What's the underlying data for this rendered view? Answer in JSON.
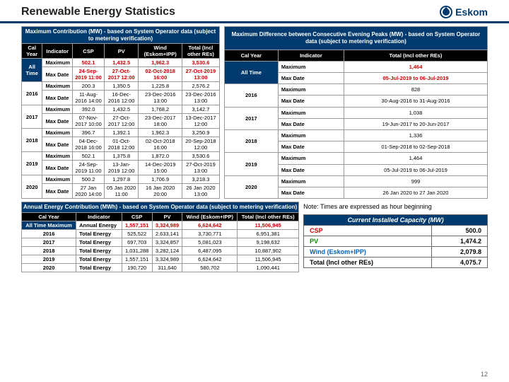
{
  "page": {
    "title": "Renewable Energy Statistics",
    "logo": "Eskom",
    "pagenum": "12",
    "note": "Note: Times are expressed as hour beginning"
  },
  "table1": {
    "banner": "Maximum Contribution (MW) - based on System Operator data (subject to metering verification)",
    "cols": [
      "Cal Year",
      "Indicator",
      "CSP",
      "PV",
      "Wind (Eskom+IPP)",
      "Total (Incl other REs)"
    ],
    "rows": [
      {
        "year": "All Time",
        "cls": "alltime",
        "ind": "Maximum",
        "vals": [
          "502.1",
          "1,432.5",
          "1,962.3",
          "3,530.6"
        ],
        "red": true
      },
      {
        "year": "",
        "cls": "alltime",
        "ind": "Max Date",
        "vals": [
          "24-Sep-2019 11:00",
          "27-Oct-2017 12:00",
          "02-Oct-2018 16:00",
          "27-Oct-2019 13:00"
        ],
        "red": true
      },
      {
        "year": "2016",
        "ind": "Maximum",
        "vals": [
          "200.3",
          "1,350.5",
          "1,225.8",
          "2,576.2"
        ]
      },
      {
        "year": "",
        "ind": "Max Date",
        "vals": [
          "11-Aug-2016 14:00",
          "16-Dec-2016 12:00",
          "23-Dec-2016 13:00",
          "23-Dec-2016 13:00"
        ]
      },
      {
        "year": "2017",
        "ind": "Maximum",
        "vals": [
          "392.0",
          "1,432.5",
          "1,768.2",
          "3,142.7"
        ]
      },
      {
        "year": "",
        "ind": "Max Date",
        "vals": [
          "07-Nov-2017 10:00",
          "27-Oct-2017 12:00",
          "23-Dec-2017 18:00",
          "13-Dec-2017 12:00"
        ]
      },
      {
        "year": "2018",
        "ind": "Maximum",
        "vals": [
          "396.7",
          "1,392.1",
          "1,962.3",
          "3,250.9"
        ]
      },
      {
        "year": "",
        "ind": "Max Date",
        "vals": [
          "04-Dec-2018 16:00",
          "01-Oct-2018 12:00",
          "02-Oct-2018 16:00",
          "20-Sep-2018 12:00"
        ]
      },
      {
        "year": "2019",
        "ind": "Maximum",
        "vals": [
          "502.1",
          "1,375.8",
          "1,872.0",
          "3,530.6"
        ]
      },
      {
        "year": "",
        "ind": "Max Date",
        "vals": [
          "24-Sep-2019 11:00",
          "13-Jan-2019 12:00",
          "14-Dec-2019 15:00",
          "27-Oct-2019 13:00"
        ]
      },
      {
        "year": "2020",
        "ind": "Maximum",
        "vals": [
          "500.2",
          "1,297.8",
          "1,706.9",
          "3,218.3"
        ]
      },
      {
        "year": "",
        "ind": "Max Date",
        "vals": [
          "27 Jan 2020 14:00",
          "05 Jan 2020 11:00",
          "16 Jan 2020 20:00",
          "26 Jan 2020 13:00"
        ]
      }
    ]
  },
  "table2": {
    "banner": "Maximum Difference between Consecutive Evening Peaks (MW) - based on System Operator data (subject to metering verification)",
    "cols": [
      "Cal Year",
      "Indicator",
      "Total (Incl other REs)"
    ],
    "rows": [
      {
        "year": "All Time",
        "cls": "alltime",
        "ind": "Maximum",
        "vals": [
          "1,464"
        ],
        "red": true
      },
      {
        "year": "",
        "cls": "alltime",
        "ind": "Max Date",
        "vals": [
          "05-Jul-2019 to 06-Jul-2019"
        ],
        "red": true
      },
      {
        "year": "2016",
        "ind": "Maximum",
        "vals": [
          "828"
        ]
      },
      {
        "year": "",
        "ind": "Max Date",
        "vals": [
          "30-Aug-2016 to 31-Aug-2016"
        ]
      },
      {
        "year": "2017",
        "ind": "Maximum",
        "vals": [
          "1,038"
        ]
      },
      {
        "year": "",
        "ind": "Max Date",
        "vals": [
          "19-Jun-2017 to 20-Jun-2017"
        ]
      },
      {
        "year": "2018",
        "ind": "Maximum",
        "vals": [
          "1,336"
        ]
      },
      {
        "year": "",
        "ind": "Max Date",
        "vals": [
          "01-Sep-2018 to 02-Sep-2018"
        ]
      },
      {
        "year": "2019",
        "ind": "Maximum",
        "vals": [
          "1,464"
        ]
      },
      {
        "year": "",
        "ind": "Max Date",
        "vals": [
          "05-Jul-2019 to 06-Jul-2019"
        ]
      },
      {
        "year": "2020",
        "ind": "Maximum",
        "vals": [
          "999"
        ]
      },
      {
        "year": "",
        "ind": "Max Date",
        "vals": [
          "26 Jan 2020 to 27 Jan 2020"
        ]
      }
    ]
  },
  "table3": {
    "banner": "Annual Energy Contribution (MWh) - based on System Operator data (subject to metering verification)",
    "cols": [
      "Cal Year",
      "Indicator",
      "CSP",
      "PV",
      "Wind (Eskom+IPP)",
      "Total (Incl other REs)"
    ],
    "rows": [
      {
        "year": "All Time Maximum",
        "cls": "alltime",
        "ind": "Annual Energy",
        "vals": [
          "1,557,151",
          "3,324,989",
          "6,624,642",
          "11,506,945"
        ],
        "red": true
      },
      {
        "year": "2016",
        "ind": "Total Energy",
        "vals": [
          "525,522",
          "2,633,141",
          "3,730,771",
          "6,951,381"
        ]
      },
      {
        "year": "2017",
        "ind": "Total Energy",
        "vals": [
          "697,703",
          "3,324,857",
          "5,081,023",
          "9,198,632"
        ]
      },
      {
        "year": "2018",
        "ind": "Total Energy",
        "vals": [
          "1,031,288",
          "3,282,124",
          "6,487,095",
          "10,887,902"
        ]
      },
      {
        "year": "2019",
        "ind": "Total Energy",
        "vals": [
          "1,557,151",
          "3,324,989",
          "6,624,642",
          "11,506,945"
        ]
      },
      {
        "year": "2020",
        "ind": "Total Energy",
        "vals": [
          "190,720",
          "311,640",
          "580,702",
          "1,090,441"
        ]
      }
    ]
  },
  "capacity": {
    "banner": "Current Installed Capacity (MW)",
    "rows": [
      {
        "label": "CSP",
        "val": "500.0",
        "cls": "csp"
      },
      {
        "label": "PV",
        "val": "1,474.2",
        "cls": "pv"
      },
      {
        "label": "Wind (Eskom+IPP)",
        "val": "2,079.8",
        "cls": "wind"
      },
      {
        "label": "Total (Incl other REs)",
        "val": "4,075.7",
        "cls": ""
      }
    ]
  }
}
